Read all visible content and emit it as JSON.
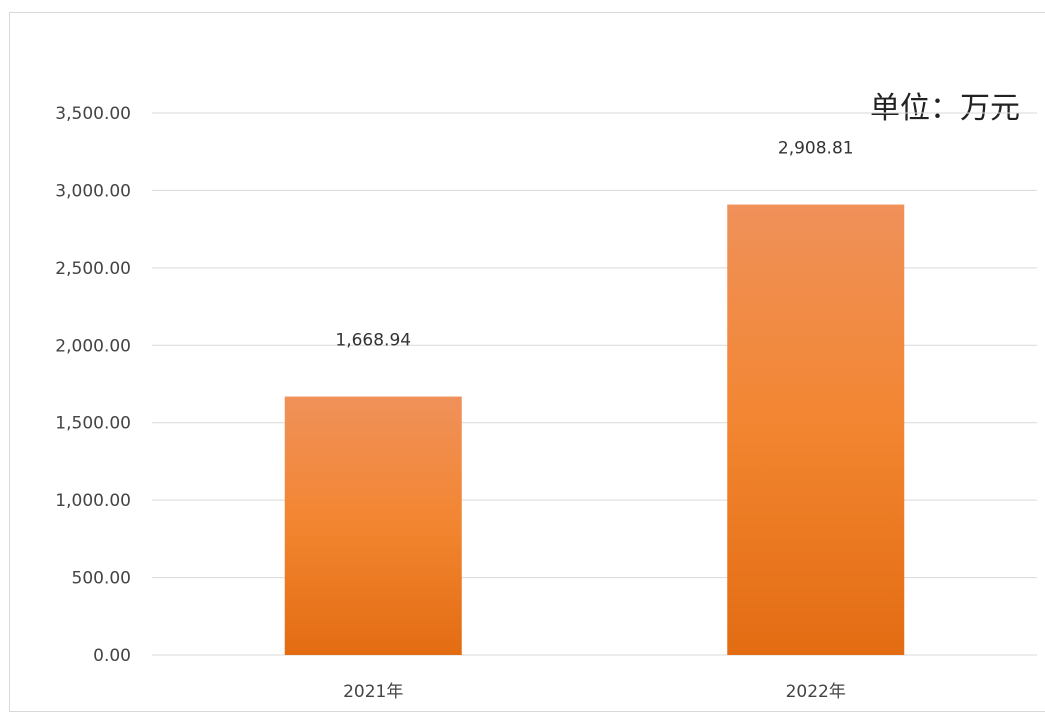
{
  "chart_data": {
    "type": "bar",
    "title": "",
    "xlabel": "",
    "ylabel": "",
    "unit_label": "单位：万元",
    "categories": [
      "2021年",
      "2022年"
    ],
    "values": [
      1668.94,
      2908.81
    ],
    "value_labels": [
      "1,668.94",
      "2,908.81"
    ],
    "ylim": [
      0,
      3500
    ],
    "y_ticks": [
      0,
      500,
      1000,
      1500,
      2000,
      2500,
      3000,
      3500
    ],
    "y_tick_labels": [
      "0.00",
      "500.00",
      "1,000.00",
      "1,500.00",
      "2,000.00",
      "2,500.00",
      "3,000.00",
      "3,500.00"
    ],
    "grid": true,
    "legend": "none",
    "colors": {
      "bar_top": "#f0915a",
      "bar_mid": "#f28530",
      "bar_bottom": "#e36c12",
      "gridline": "#d9d9d9",
      "axis": "#d9d9d9"
    }
  }
}
